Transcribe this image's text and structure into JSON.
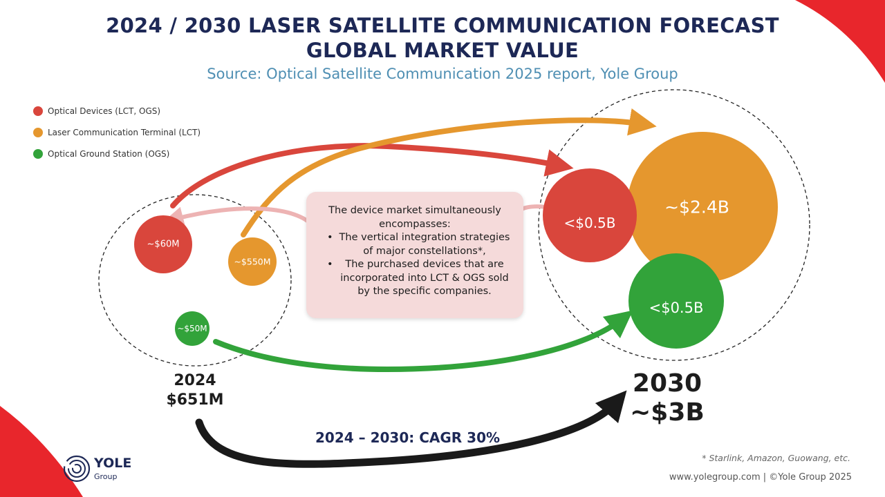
{
  "header": {
    "title_line1": "2024 / 2030 LASER SATELLITE COMMUNICATION FORECAST",
    "title_line2": "GLOBAL MARKET VALUE",
    "source": "Source: Optical Satellite Communication 2025 report, Yole Group"
  },
  "colors": {
    "optical_devices": "#d9463c",
    "lct": "#e5972e",
    "ogs": "#32a33a",
    "navy": "#1d2856",
    "accent_red": "#e8262c"
  },
  "chart_data": {
    "type": "bubble",
    "title": "2024 / 2030 LASER SATELLITE COMMUNICATION FORECAST GLOBAL MARKET VALUE",
    "subtitle": "Source: Optical Satellite Communication 2025 report, Yole Group",
    "legend": [
      {
        "name": "Optical Devices (LCT, OGS)",
        "color": "#d9463c"
      },
      {
        "name": "Laser Communication Terminal (LCT)",
        "color": "#e5972e"
      },
      {
        "name": "Optical Ground Station (OGS)",
        "color": "#32a33a"
      }
    ],
    "legend_position": "top-left",
    "groups": [
      {
        "year": "2024",
        "total_label": "$651M",
        "total_millions": 651,
        "items": [
          {
            "segment": "Optical Devices (LCT, OGS)",
            "label": "~$60M",
            "value_millions": 60
          },
          {
            "segment": "Laser Communication Terminal (LCT)",
            "label": "~$550M",
            "value_millions": 550
          },
          {
            "segment": "Optical Ground Station (OGS)",
            "label": "~$50M",
            "value_millions": 50
          }
        ]
      },
      {
        "year": "2030",
        "total_label": "~$3B",
        "total_millions": 3000,
        "items": [
          {
            "segment": "Optical Devices (LCT, OGS)",
            "label": "<$0.5B",
            "value_millions": 500
          },
          {
            "segment": "Laser Communication Terminal (LCT)",
            "label": "~$2.4B",
            "value_millions": 2400
          },
          {
            "segment": "Optical Ground Station (OGS)",
            "label": "<$0.5B",
            "value_millions": 500
          }
        ]
      }
    ],
    "cagr_label": "2024 – 2030: CAGR 30%",
    "cagr_percent": 30
  },
  "note": {
    "intro": "The device market simultaneously encompasses:",
    "bullets": [
      "The vertical integration strategies of major constellations*,",
      "The purchased devices that are incorporated into LCT & OGS sold by the specific companies."
    ]
  },
  "footer": {
    "footnote": "* Starlink, Amazon, Guowang, etc.",
    "copyright": "www.yolegroup.com | ©Yole Group 2025",
    "logo_text": "YOLE",
    "logo_sub": "Group"
  }
}
